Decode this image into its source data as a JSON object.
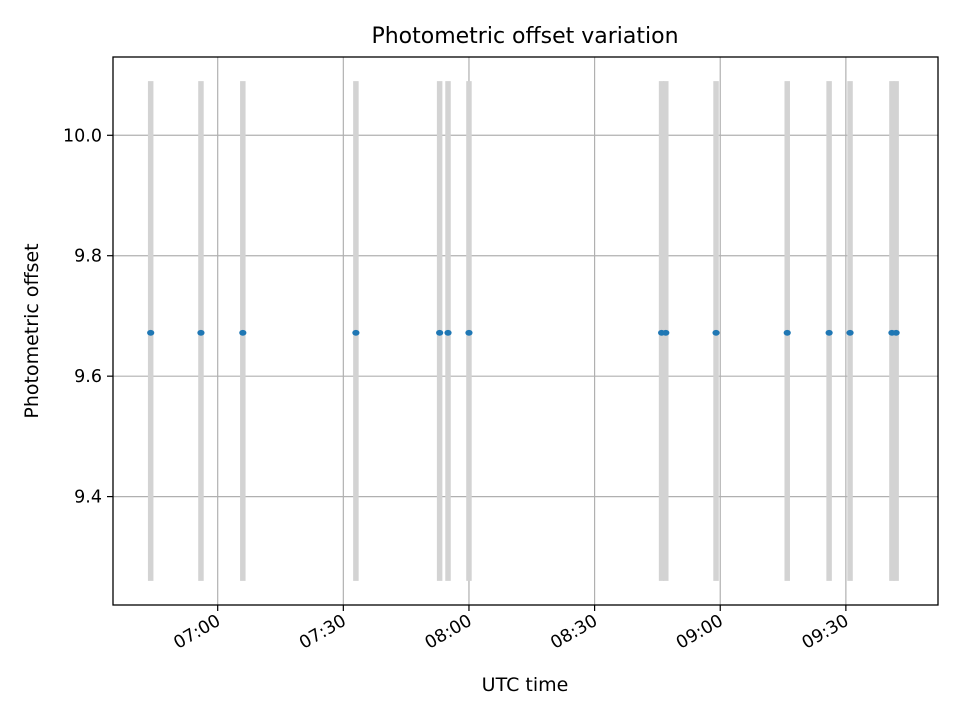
{
  "chart_data": {
    "type": "scatter",
    "title": "Photometric offset variation",
    "xlabel": "UTC time",
    "ylabel": "Photometric offset",
    "x_axis": "time",
    "xlim": [
      "06:35",
      "09:52"
    ],
    "ylim": [
      9.22,
      10.13
    ],
    "x_ticks": [
      "07:00",
      "07:30",
      "08:00",
      "08:30",
      "09:00",
      "09:30"
    ],
    "y_ticks": [
      "9.4",
      "9.6",
      "9.8",
      "10.0"
    ],
    "grid": true,
    "marker_color": "#1f77b4",
    "errorbar_color": "#d3d3d3",
    "points": [
      {
        "time": "06:44",
        "offset": 9.672,
        "lower": 9.26,
        "upper": 10.09
      },
      {
        "time": "06:56",
        "offset": 9.672,
        "lower": 9.26,
        "upper": 10.09
      },
      {
        "time": "07:06",
        "offset": 9.672,
        "lower": 9.26,
        "upper": 10.09
      },
      {
        "time": "07:33",
        "offset": 9.672,
        "lower": 9.26,
        "upper": 10.09
      },
      {
        "time": "07:53",
        "offset": 9.672,
        "lower": 9.26,
        "upper": 10.09
      },
      {
        "time": "07:55",
        "offset": 9.672,
        "lower": 9.26,
        "upper": 10.09
      },
      {
        "time": "08:00",
        "offset": 9.672,
        "lower": 9.26,
        "upper": 10.09
      },
      {
        "time": "08:46",
        "offset": 9.672,
        "lower": 9.26,
        "upper": 10.09
      },
      {
        "time": "08:47",
        "offset": 9.672,
        "lower": 9.26,
        "upper": 10.09
      },
      {
        "time": "08:59",
        "offset": 9.672,
        "lower": 9.26,
        "upper": 10.09
      },
      {
        "time": "09:16",
        "offset": 9.672,
        "lower": 9.26,
        "upper": 10.09
      },
      {
        "time": "09:26",
        "offset": 9.672,
        "lower": 9.26,
        "upper": 10.09
      },
      {
        "time": "09:31",
        "offset": 9.672,
        "lower": 9.26,
        "upper": 10.09
      },
      {
        "time": "09:41",
        "offset": 9.672,
        "lower": 9.26,
        "upper": 10.09
      },
      {
        "time": "09:42",
        "offset": 9.672,
        "lower": 9.26,
        "upper": 10.09
      }
    ]
  }
}
